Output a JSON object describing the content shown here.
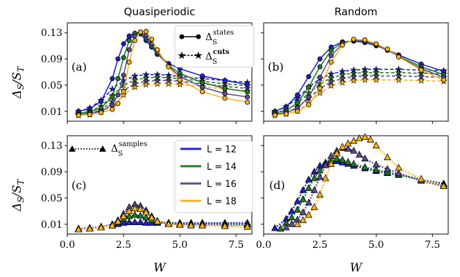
{
  "figure": {
    "column_titles": [
      "Quasiperiodic",
      "Random"
    ],
    "ylabel": "ΔS/ST",
    "xlabel": "W"
  },
  "legend_markers": {
    "states": "ΔS^states",
    "cuts": "ΔS^cuts",
    "samples": "ΔS^samples"
  },
  "legend_sizes": [
    {
      "label": "L = 12",
      "color": "#1f1fd1"
    },
    {
      "label": "L = 14",
      "color": "#1e7d1e"
    },
    {
      "label": "L = 16",
      "color": "#5e4b8b"
    },
    {
      "label": "L = 18",
      "color": "#f5b21a"
    }
  ],
  "chart_data": [
    {
      "panel": "(a)",
      "type": "line",
      "title": "Quasiperiodic",
      "xlabel": "",
      "ylabel": "ΔS/ST",
      "xlim": [
        0,
        8.2
      ],
      "ylim": [
        -0.005,
        0.145
      ],
      "yticks": [
        0.01,
        0.05,
        0.09,
        0.13
      ],
      "xticks": [
        0.0,
        2.5,
        5.0,
        7.5
      ],
      "series": [
        {
          "name": "L = 12",
          "kind": "states",
          "x": [
            0.5,
            1.0,
            1.5,
            2.0,
            2.25,
            2.5,
            2.75,
            3.0,
            3.25,
            3.5,
            3.75,
            4.0,
            4.5,
            5.0,
            6.0,
            7.0,
            8.0
          ],
          "y": [
            0.01,
            0.014,
            0.025,
            0.06,
            0.09,
            0.113,
            0.125,
            0.129,
            0.128,
            0.118,
            0.108,
            0.097,
            0.083,
            0.075,
            0.064,
            0.057,
            0.051
          ]
        },
        {
          "name": "L = 14",
          "kind": "states",
          "x": [
            0.5,
            1.0,
            1.5,
            2.0,
            2.25,
            2.5,
            2.75,
            3.0,
            3.25,
            3.5,
            3.75,
            4.0,
            4.5,
            5.0,
            6.0,
            7.0,
            8.0
          ],
          "y": [
            0.007,
            0.009,
            0.015,
            0.032,
            0.06,
            0.092,
            0.118,
            0.129,
            0.13,
            0.122,
            0.11,
            0.098,
            0.08,
            0.068,
            0.054,
            0.045,
            0.04
          ]
        },
        {
          "name": "L = 16",
          "kind": "states",
          "x": [
            0.5,
            1.0,
            1.5,
            2.0,
            2.25,
            2.5,
            2.75,
            3.0,
            3.25,
            3.5,
            3.75,
            4.0,
            4.5,
            5.0,
            6.0,
            7.0,
            8.0
          ],
          "y": [
            0.005,
            0.007,
            0.01,
            0.02,
            0.035,
            0.065,
            0.104,
            0.125,
            0.131,
            0.126,
            0.113,
            0.1,
            0.079,
            0.063,
            0.047,
            0.037,
            0.032
          ]
        },
        {
          "name": "L = 18",
          "kind": "states",
          "x": [
            0.5,
            1.0,
            1.5,
            2.0,
            2.25,
            2.5,
            2.75,
            3.0,
            3.25,
            3.5,
            3.75,
            4.0,
            4.5,
            5.0,
            6.0,
            7.0,
            8.0
          ],
          "y": [
            0.004,
            0.005,
            0.008,
            0.013,
            0.022,
            0.04,
            0.085,
            0.118,
            0.131,
            0.132,
            0.12,
            0.104,
            0.078,
            0.058,
            0.04,
            0.03,
            0.024
          ]
        },
        {
          "name": "L = 12",
          "kind": "cuts",
          "x": [
            0.5,
            1.0,
            1.5,
            2.0,
            2.5,
            3.0,
            3.5,
            4.0,
            4.5,
            5.0,
            6.0,
            7.0,
            8.0
          ],
          "y": [
            0.01,
            0.015,
            0.027,
            0.044,
            0.057,
            0.064,
            0.066,
            0.066,
            0.065,
            0.063,
            0.06,
            0.057,
            0.054
          ]
        },
        {
          "name": "L = 14",
          "kind": "cuts",
          "x": [
            0.5,
            1.0,
            1.5,
            2.0,
            2.5,
            3.0,
            3.5,
            4.0,
            4.5,
            5.0,
            6.0,
            7.0,
            8.0
          ],
          "y": [
            0.007,
            0.01,
            0.018,
            0.034,
            0.05,
            0.058,
            0.061,
            0.062,
            0.061,
            0.06,
            0.056,
            0.052,
            0.049
          ]
        },
        {
          "name": "L = 16",
          "kind": "cuts",
          "x": [
            0.5,
            1.0,
            1.5,
            2.0,
            2.5,
            3.0,
            3.5,
            4.0,
            4.5,
            5.0,
            6.0,
            7.0,
            8.0
          ],
          "y": [
            0.005,
            0.007,
            0.012,
            0.025,
            0.042,
            0.052,
            0.056,
            0.057,
            0.057,
            0.056,
            0.052,
            0.048,
            0.045
          ]
        },
        {
          "name": "L = 18",
          "kind": "cuts",
          "x": [
            0.5,
            1.0,
            1.5,
            2.0,
            2.5,
            3.0,
            3.5,
            4.0,
            4.5,
            5.0,
            6.0,
            7.0,
            8.0
          ],
          "y": [
            0.004,
            0.005,
            0.009,
            0.018,
            0.035,
            0.047,
            0.051,
            0.052,
            0.052,
            0.051,
            0.048,
            0.044,
            0.041
          ]
        }
      ]
    },
    {
      "panel": "(b)",
      "type": "line",
      "title": "Random",
      "xlabel": "",
      "ylabel": "",
      "xlim": [
        0,
        8.2
      ],
      "ylim": [
        -0.005,
        0.145
      ],
      "yticks": [
        0.01,
        0.05,
        0.09,
        0.13
      ],
      "xticks": [
        0.0,
        2.5,
        5.0,
        7.5
      ],
      "series": [
        {
          "name": "L = 12",
          "kind": "states",
          "x": [
            0.5,
            1.0,
            1.5,
            2.0,
            2.5,
            3.0,
            3.5,
            4.0,
            4.5,
            5.0,
            5.5,
            6.0,
            7.0,
            8.0
          ],
          "y": [
            0.01,
            0.017,
            0.035,
            0.063,
            0.09,
            0.108,
            0.116,
            0.117,
            0.115,
            0.11,
            0.104,
            0.096,
            0.082,
            0.071
          ]
        },
        {
          "name": "L = 14",
          "kind": "states",
          "x": [
            0.5,
            1.0,
            1.5,
            2.0,
            2.5,
            3.0,
            3.5,
            4.0,
            4.5,
            5.0,
            5.5,
            6.0,
            7.0,
            8.0
          ],
          "y": [
            0.008,
            0.011,
            0.023,
            0.047,
            0.078,
            0.103,
            0.115,
            0.118,
            0.116,
            0.111,
            0.103,
            0.094,
            0.078,
            0.066
          ]
        },
        {
          "name": "L = 16",
          "kind": "states",
          "x": [
            0.5,
            1.0,
            1.5,
            2.0,
            2.5,
            3.0,
            3.5,
            4.0,
            4.5,
            5.0,
            5.5,
            6.0,
            7.0,
            8.0
          ],
          "y": [
            0.006,
            0.008,
            0.015,
            0.032,
            0.062,
            0.095,
            0.113,
            0.119,
            0.117,
            0.112,
            0.104,
            0.093,
            0.075,
            0.062
          ]
        },
        {
          "name": "L = 18",
          "kind": "states",
          "x": [
            0.5,
            1.0,
            1.5,
            2.0,
            2.5,
            3.0,
            3.5,
            4.0,
            4.5,
            5.0,
            5.5,
            6.0,
            7.0,
            8.0
          ],
          "y": [
            0.004,
            0.006,
            0.01,
            0.02,
            0.045,
            0.085,
            0.111,
            0.12,
            0.119,
            0.113,
            0.105,
            0.093,
            0.073,
            0.058
          ]
        },
        {
          "name": "L = 12",
          "kind": "cuts",
          "x": [
            0.5,
            1.0,
            1.5,
            2.0,
            2.5,
            3.0,
            3.5,
            4.0,
            4.5,
            5.0,
            6.0,
            7.0,
            8.0
          ],
          "y": [
            0.01,
            0.017,
            0.03,
            0.047,
            0.06,
            0.067,
            0.071,
            0.073,
            0.074,
            0.074,
            0.074,
            0.073,
            0.072
          ]
        },
        {
          "name": "L = 14",
          "kind": "cuts",
          "x": [
            0.5,
            1.0,
            1.5,
            2.0,
            2.5,
            3.0,
            3.5,
            4.0,
            4.5,
            5.0,
            6.0,
            7.0,
            8.0
          ],
          "y": [
            0.008,
            0.012,
            0.022,
            0.038,
            0.052,
            0.061,
            0.066,
            0.068,
            0.069,
            0.069,
            0.069,
            0.068,
            0.067
          ]
        },
        {
          "name": "L = 16",
          "kind": "cuts",
          "x": [
            0.5,
            1.0,
            1.5,
            2.0,
            2.5,
            3.0,
            3.5,
            4.0,
            4.5,
            5.0,
            6.0,
            7.0,
            8.0
          ],
          "y": [
            0.006,
            0.008,
            0.016,
            0.03,
            0.045,
            0.055,
            0.06,
            0.063,
            0.064,
            0.064,
            0.064,
            0.063,
            0.062
          ]
        },
        {
          "name": "L = 18",
          "kind": "cuts",
          "x": [
            0.5,
            1.0,
            1.5,
            2.0,
            2.5,
            3.0,
            3.5,
            4.0,
            4.5,
            5.0,
            6.0,
            7.0,
            8.0
          ],
          "y": [
            0.004,
            0.006,
            0.011,
            0.023,
            0.038,
            0.049,
            0.054,
            0.057,
            0.058,
            0.058,
            0.058,
            0.057,
            0.056
          ]
        }
      ]
    },
    {
      "panel": "(c)",
      "type": "line",
      "title": "",
      "xlabel": "W",
      "ylabel": "ΔS/ST",
      "xlim": [
        0,
        8.2
      ],
      "ylim": [
        -0.005,
        0.145
      ],
      "yticks": [
        0.01,
        0.05,
        0.09,
        0.13
      ],
      "xticks": [
        0.0,
        2.5,
        5.0,
        7.5
      ],
      "series": [
        {
          "name": "L = 12",
          "kind": "samples",
          "x": [
            0.5,
            1.0,
            1.5,
            2.0,
            2.25,
            2.5,
            2.75,
            3.0,
            3.25,
            3.5,
            3.75,
            4.0,
            4.5,
            5.0,
            5.5,
            6.0,
            7.0,
            8.0
          ],
          "y": [
            0.003,
            0.004,
            0.006,
            0.008,
            0.01,
            0.012,
            0.013,
            0.013,
            0.013,
            0.012,
            0.012,
            0.012,
            0.012,
            0.012,
            0.012,
            0.012,
            0.012,
            0.012
          ]
        },
        {
          "name": "L = 14",
          "kind": "samples",
          "x": [
            0.5,
            1.0,
            1.5,
            2.0,
            2.25,
            2.5,
            2.75,
            3.0,
            3.25,
            3.5,
            3.75,
            4.0,
            4.5,
            5.0,
            5.5,
            6.0,
            7.0,
            8.0
          ],
          "y": [
            0.003,
            0.004,
            0.006,
            0.009,
            0.013,
            0.018,
            0.022,
            0.024,
            0.023,
            0.02,
            0.016,
            0.013,
            0.012,
            0.011,
            0.011,
            0.011,
            0.011,
            0.01
          ]
        },
        {
          "name": "L = 16",
          "kind": "samples",
          "x": [
            0.5,
            1.0,
            1.5,
            2.0,
            2.25,
            2.5,
            2.75,
            3.0,
            3.25,
            3.5,
            3.75,
            4.0,
            4.5,
            5.0,
            5.5,
            6.0,
            7.0,
            8.0
          ],
          "y": [
            0.003,
            0.004,
            0.006,
            0.01,
            0.016,
            0.026,
            0.036,
            0.04,
            0.038,
            0.031,
            0.022,
            0.015,
            0.011,
            0.01,
            0.01,
            0.01,
            0.009,
            0.009
          ]
        },
        {
          "name": "L = 18",
          "kind": "samples",
          "x": [
            0.5,
            1.0,
            1.5,
            2.0,
            2.25,
            2.5,
            2.75,
            3.0,
            3.25,
            3.5,
            3.75,
            4.0,
            4.5,
            5.0,
            5.5,
            6.0,
            7.0,
            8.0
          ],
          "y": [
            0.002,
            0.003,
            0.005,
            0.008,
            0.014,
            0.022,
            0.03,
            0.034,
            0.033,
            0.028,
            0.02,
            0.014,
            0.01,
            0.009,
            0.008,
            0.008,
            0.007,
            0.006
          ]
        }
      ]
    },
    {
      "panel": "(d)",
      "type": "line",
      "title": "",
      "xlabel": "W",
      "ylabel": "",
      "xlim": [
        0,
        8.2
      ],
      "ylim": [
        -0.005,
        0.145
      ],
      "yticks": [
        0.01,
        0.05,
        0.09,
        0.13
      ],
      "xticks": [
        0.0,
        2.5,
        5.0,
        7.5
      ],
      "series": [
        {
          "name": "L = 12",
          "kind": "samples",
          "x": [
            0.5,
            1.0,
            1.25,
            1.5,
            1.75,
            2.0,
            2.25,
            2.5,
            2.75,
            3.0,
            3.25,
            3.5,
            3.75,
            4.0,
            4.5,
            5.0,
            5.5,
            6.0,
            7.0,
            8.0
          ],
          "y": [
            0.004,
            0.018,
            0.03,
            0.045,
            0.062,
            0.078,
            0.09,
            0.099,
            0.104,
            0.107,
            0.106,
            0.104,
            0.102,
            0.099,
            0.095,
            0.091,
            0.088,
            0.085,
            0.078,
            0.072
          ]
        },
        {
          "name": "L = 14",
          "kind": "samples",
          "x": [
            0.75,
            1.0,
            1.25,
            1.5,
            1.75,
            2.0,
            2.25,
            2.5,
            2.75,
            3.0,
            3.25,
            3.5,
            3.75,
            4.0,
            4.5,
            5.0,
            5.5,
            6.0,
            7.0,
            8.0
          ],
          "y": [
            0.003,
            0.012,
            0.02,
            0.032,
            0.048,
            0.065,
            0.08,
            0.092,
            0.102,
            0.108,
            0.11,
            0.108,
            0.105,
            0.102,
            0.097,
            0.093,
            0.089,
            0.086,
            0.078,
            0.07
          ]
        },
        {
          "name": "L = 16",
          "kind": "samples",
          "x": [
            1.0,
            1.25,
            1.5,
            1.75,
            2.0,
            2.25,
            2.5,
            2.75,
            3.0,
            3.25,
            3.5,
            3.75,
            4.0,
            4.25,
            4.5,
            5.0,
            5.5,
            6.0,
            7.0,
            8.0
          ],
          "y": [
            0.005,
            0.01,
            0.017,
            0.028,
            0.043,
            0.062,
            0.082,
            0.1,
            0.114,
            0.122,
            0.126,
            0.125,
            0.122,
            0.116,
            0.11,
            0.101,
            0.094,
            0.088,
            0.076,
            0.068
          ]
        },
        {
          "name": "L = 18",
          "kind": "samples",
          "x": [
            1.5,
            1.75,
            2.0,
            2.25,
            2.5,
            2.75,
            3.0,
            3.25,
            3.5,
            3.75,
            4.0,
            4.25,
            4.5,
            4.75,
            5.0,
            5.5,
            6.0,
            7.0,
            8.0
          ],
          "y": [
            0.01,
            0.016,
            0.024,
            0.036,
            0.055,
            0.08,
            0.102,
            0.118,
            0.128,
            0.133,
            0.137,
            0.141,
            0.143,
            0.139,
            0.13,
            0.112,
            0.096,
            0.079,
            0.068
          ]
        }
      ]
    }
  ]
}
